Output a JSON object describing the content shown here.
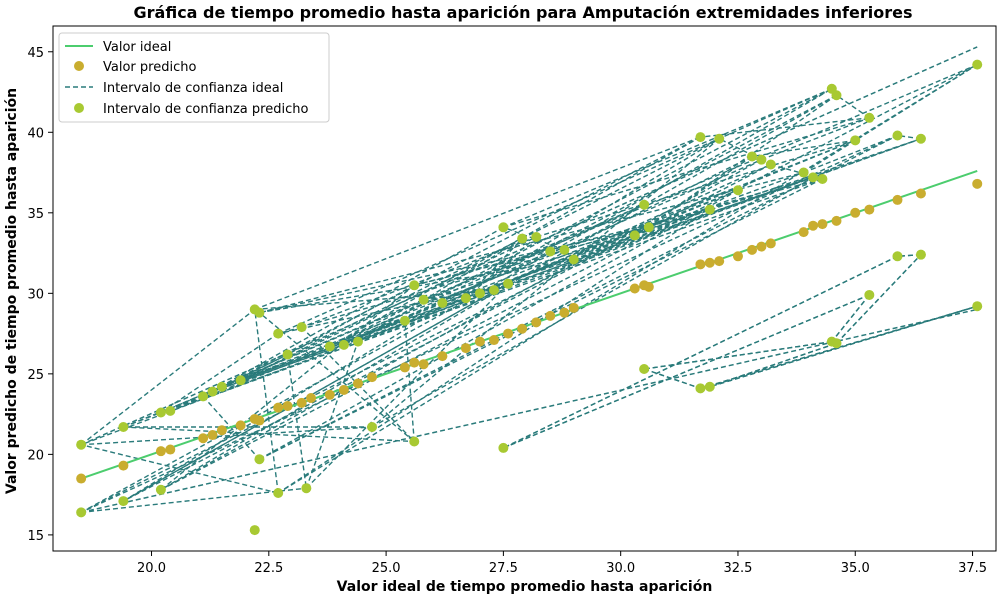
{
  "chart_data": {
    "type": "scatter",
    "title": "Gráfica de tiempo promedio hasta aparición para Amputación extremidades inferiores",
    "xlabel": "Valor ideal de tiempo promedio hasta aparición",
    "ylabel": "Valor predicho de tiempo promedio hasta aparición",
    "xlim": [
      17.9,
      38.0
    ],
    "ylim": [
      14.0,
      46.6
    ],
    "xticks": [
      20.0,
      22.5,
      25.0,
      27.5,
      30.0,
      32.5,
      35.0,
      37.5
    ],
    "xtick_labels": [
      "20.0",
      "22.5",
      "25.0",
      "27.5",
      "30.0",
      "32.5",
      "35.0",
      "37.5"
    ],
    "yticks": [
      15,
      20,
      25,
      30,
      35,
      40,
      45
    ],
    "ytick_labels": [
      "15",
      "20",
      "25",
      "30",
      "35",
      "40",
      "45"
    ],
    "grid": false,
    "legend_position": "top-left",
    "colors": {
      "ideal_line": "#4ccd6e",
      "predicted": "#c9ad2f",
      "ci_ideal": "#2a7b7b",
      "ci_predicted": "#a8c932"
    },
    "series": [
      {
        "name": "Valor ideal",
        "kind": "line",
        "x": [
          18.5,
          37.6
        ],
        "y": [
          18.5,
          37.6
        ]
      },
      {
        "name": "Valor predicho",
        "kind": "scatter",
        "x": [
          18.5,
          19.4,
          20.2,
          20.4,
          21.1,
          21.3,
          21.5,
          21.9,
          22.2,
          22.3,
          22.7,
          22.9,
          23.2,
          23.4,
          23.8,
          24.1,
          24.4,
          24.7,
          25.4,
          25.6,
          25.8,
          26.2,
          26.7,
          27.0,
          27.3,
          27.6,
          27.9,
          28.2,
          28.5,
          28.8,
          29.0,
          30.3,
          30.5,
          30.6,
          31.7,
          31.9,
          32.1,
          32.5,
          32.8,
          33.0,
          33.2,
          33.9,
          34.1,
          34.3,
          34.6,
          35.0,
          35.3,
          35.9,
          36.4,
          37.6
        ],
        "y": [
          18.5,
          19.3,
          20.2,
          20.3,
          21.0,
          21.2,
          21.5,
          21.8,
          22.2,
          22.1,
          22.9,
          23.0,
          23.2,
          23.5,
          23.7,
          24.0,
          24.4,
          24.8,
          25.4,
          25.7,
          25.6,
          26.1,
          26.6,
          27.0,
          27.1,
          27.5,
          27.8,
          28.2,
          28.6,
          28.8,
          29.1,
          30.3,
          30.5,
          30.4,
          31.8,
          31.9,
          32.0,
          32.3,
          32.7,
          32.9,
          33.1,
          33.8,
          34.2,
          34.3,
          34.5,
          35.0,
          35.2,
          35.8,
          36.2,
          36.8
        ]
      },
      {
        "name": "Intervalo de confianza ideal",
        "kind": "dashed-band",
        "x": [
          18.5,
          37.6
        ],
        "y_upper": [
          20.6,
          45.3
        ],
        "y_lower": [
          16.4,
          29.0
        ]
      },
      {
        "name": "Intervalo de confianza predicho",
        "kind": "scatter",
        "x": [
          18.5,
          18.5,
          19.4,
          19.4,
          20.2,
          20.2,
          20.4,
          21.1,
          21.3,
          21.5,
          21.9,
          22.2,
          22.2,
          22.3,
          22.3,
          22.7,
          22.7,
          22.9,
          23.2,
          23.3,
          23.8,
          24.1,
          24.4,
          24.7,
          25.4,
          25.6,
          25.6,
          25.8,
          26.2,
          26.7,
          27.0,
          27.3,
          27.5,
          27.5,
          27.6,
          27.9,
          28.2,
          28.5,
          28.8,
          29.0,
          30.3,
          30.5,
          30.5,
          30.6,
          31.7,
          31.7,
          31.9,
          31.9,
          32.1,
          32.5,
          32.8,
          33.0,
          33.2,
          33.9,
          34.1,
          34.3,
          34.5,
          34.5,
          34.6,
          34.6,
          35.0,
          35.3,
          35.3,
          35.9,
          35.9,
          36.4,
          36.4,
          37.6,
          37.6
        ],
        "y": [
          20.6,
          16.4,
          21.7,
          17.1,
          22.6,
          17.8,
          22.7,
          23.6,
          23.9,
          24.2,
          24.6,
          29.0,
          15.3,
          28.8,
          19.7,
          27.5,
          17.6,
          26.2,
          27.9,
          17.9,
          26.7,
          26.8,
          27.0,
          21.7,
          28.3,
          30.5,
          20.8,
          29.6,
          29.4,
          29.7,
          30.0,
          30.2,
          34.1,
          20.4,
          30.6,
          33.4,
          33.5,
          32.6,
          32.7,
          32.1,
          33.6,
          35.5,
          25.3,
          34.1,
          39.7,
          24.1,
          35.2,
          24.2,
          39.6,
          36.4,
          38.5,
          38.3,
          38.0,
          37.5,
          37.2,
          37.1,
          42.7,
          27.0,
          42.3,
          26.9,
          39.5,
          40.9,
          29.9,
          39.8,
          32.3,
          39.6,
          32.4,
          44.2,
          29.2
        ]
      }
    ]
  }
}
